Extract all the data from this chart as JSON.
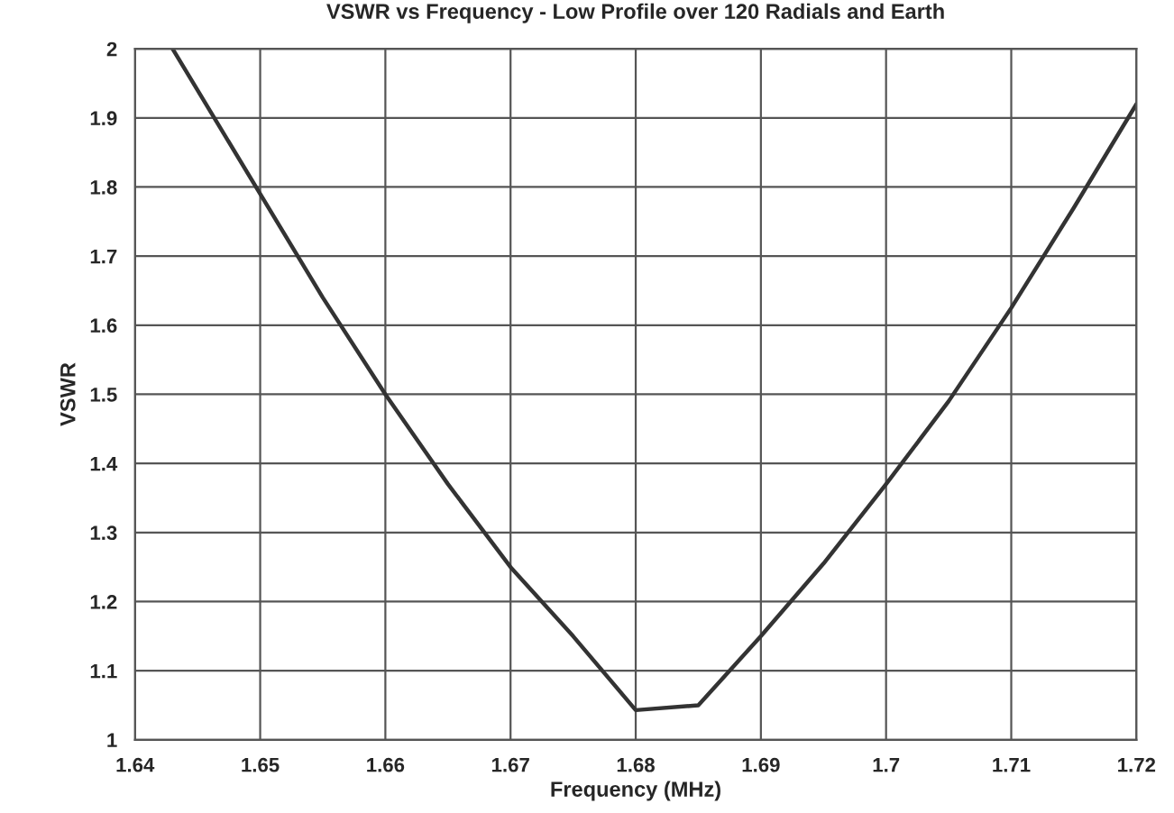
{
  "chart_data": {
    "type": "line",
    "title": "VSWR vs Frequency - Low Profile over 120 Radials and Earth",
    "xlabel": "Frequency (MHz)",
    "ylabel": "VSWR",
    "x": [
      1.643,
      1.645,
      1.65,
      1.655,
      1.66,
      1.665,
      1.67,
      1.675,
      1.68,
      1.685,
      1.69,
      1.695,
      1.7,
      1.705,
      1.71,
      1.715,
      1.72
    ],
    "series": [
      {
        "color": "#333333",
        "values": [
          2.0,
          1.94,
          1.79,
          1.64,
          1.5,
          1.37,
          1.25,
          1.15,
          1.043,
          1.05,
          1.15,
          1.255,
          1.37,
          1.49,
          1.625,
          1.77,
          1.92
        ]
      }
    ],
    "xlim": [
      1.64,
      1.72
    ],
    "xticks": [
      1.64,
      1.65,
      1.66,
      1.67,
      1.68,
      1.69,
      1.7,
      1.71,
      1.72
    ],
    "ylim": [
      1,
      2
    ],
    "yticks": [
      1,
      1.1,
      1.2,
      1.3,
      1.4,
      1.5,
      1.6,
      1.7,
      1.8,
      1.9,
      2
    ],
    "grid": true,
    "marker": "none",
    "line_style": "solid"
  }
}
